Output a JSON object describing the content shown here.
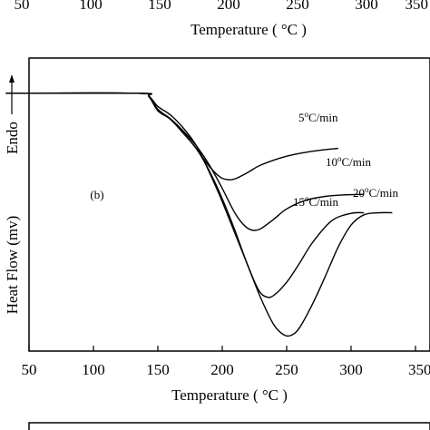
{
  "top_strip": {
    "tick_labels": [
      "50",
      "100",
      "150",
      "200",
      "250",
      "300",
      "350"
    ],
    "xlabel": "Temperature ( °C )"
  },
  "chart_data": {
    "type": "line",
    "panel_label": "(b)",
    "xlabel": "Temperature ( °C )",
    "ylabel": "Heat Flow (mv)",
    "endo_label": "Endo",
    "xlim": [
      50,
      350
    ],
    "xticks": [
      50,
      100,
      150,
      200,
      250,
      300,
      350
    ],
    "xtick_labels": [
      "50",
      "100",
      "150",
      "200",
      "250",
      "300",
      "350"
    ],
    "ylim": [
      0,
      1
    ],
    "y_ticks_shown": false,
    "grid": false,
    "series": [
      {
        "name": "5°C/min",
        "label_base": "5",
        "label_sup": "o",
        "label_unit": "C/min",
        "x": [
          32,
          135,
          143,
          150,
          160,
          170,
          180,
          190,
          198,
          204,
          210,
          220,
          230,
          250,
          270,
          290
        ],
        "y": [
          0.88,
          0.88,
          0.87,
          0.825,
          0.79,
          0.745,
          0.69,
          0.63,
          0.595,
          0.585,
          0.588,
          0.61,
          0.635,
          0.665,
          0.682,
          0.692
        ]
      },
      {
        "name": "10°C/min",
        "label_base": "10",
        "label_sup": "o",
        "label_unit": "C/min",
        "x": [
          32,
          135,
          143,
          150,
          160,
          170,
          180,
          190,
          200,
          210,
          218,
          224,
          230,
          240,
          250,
          265,
          280,
          295,
          310
        ],
        "y": [
          0.88,
          0.88,
          0.87,
          0.825,
          0.792,
          0.75,
          0.7,
          0.635,
          0.555,
          0.47,
          0.425,
          0.412,
          0.418,
          0.45,
          0.485,
          0.515,
          0.528,
          0.533,
          0.535
        ]
      },
      {
        "name": "15°C/min",
        "label_base": "15",
        "label_sup": "o",
        "label_unit": "C/min",
        "x": [
          32,
          135,
          143,
          150,
          160,
          170,
          180,
          190,
          200,
          210,
          220,
          228,
          234,
          240,
          250,
          260,
          270,
          285,
          300,
          310
        ],
        "y": [
          0.88,
          0.88,
          0.868,
          0.82,
          0.79,
          0.742,
          0.69,
          0.615,
          0.52,
          0.41,
          0.29,
          0.21,
          0.185,
          0.19,
          0.235,
          0.3,
          0.37,
          0.445,
          0.47,
          0.472
        ]
      },
      {
        "name": "20°C/min",
        "label_base": "20",
        "label_sup": "o",
        "label_unit": "C/min",
        "x": [
          32,
          135,
          143,
          150,
          160,
          170,
          180,
          190,
          200,
          210,
          220,
          230,
          240,
          248,
          254,
          260,
          270,
          280,
          290,
          300,
          310,
          322,
          332
        ],
        "y": [
          0.88,
          0.88,
          0.87,
          0.835,
          0.805,
          0.76,
          0.7,
          0.61,
          0.51,
          0.4,
          0.29,
          0.18,
          0.09,
          0.055,
          0.055,
          0.08,
          0.16,
          0.255,
          0.355,
          0.43,
          0.465,
          0.472,
          0.472
        ]
      }
    ]
  }
}
